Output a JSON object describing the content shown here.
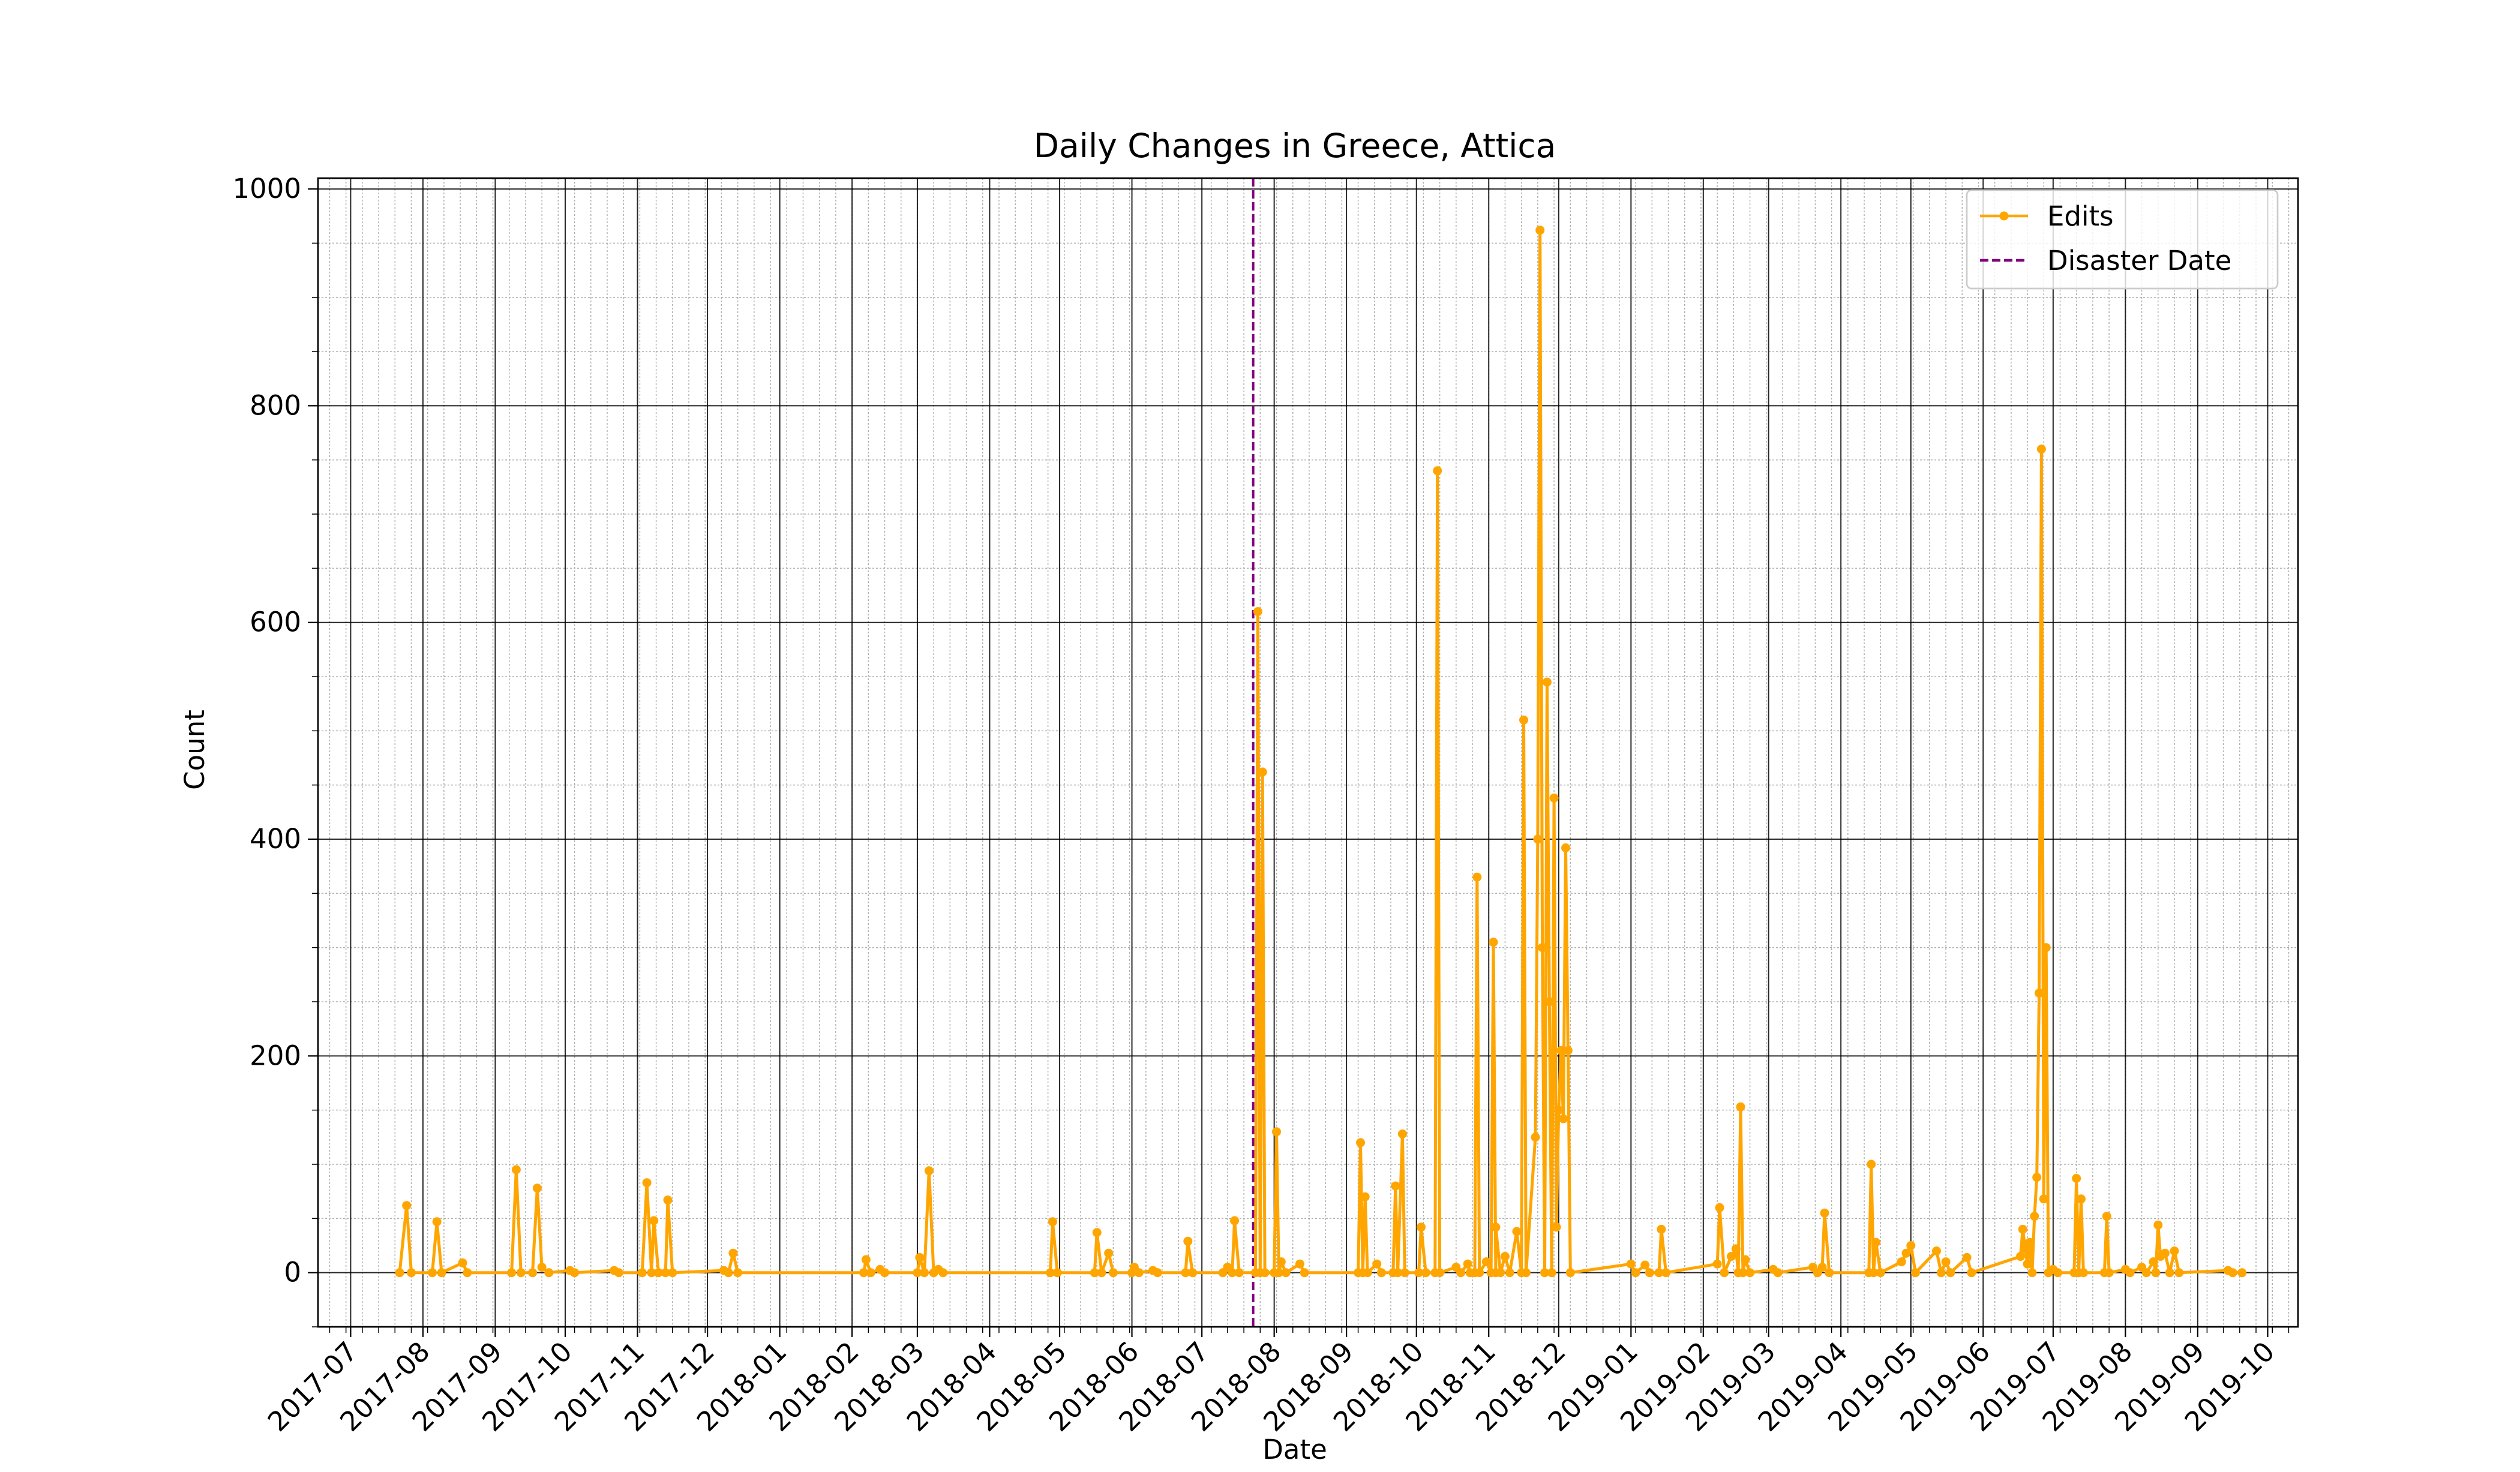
{
  "chart_data": {
    "type": "line",
    "title": "Daily Changes in Greece, Attica",
    "xlabel": "Date",
    "ylabel": "Count",
    "x_tick_labels": [
      "2017-07",
      "2017-08",
      "2017-09",
      "2017-10",
      "2017-11",
      "2017-12",
      "2018-01",
      "2018-02",
      "2018-03",
      "2018-04",
      "2018-05",
      "2018-06",
      "2018-07",
      "2018-08",
      "2018-09",
      "2018-10",
      "2018-11",
      "2018-12",
      "2019-01",
      "2019-02",
      "2019-03",
      "2019-04",
      "2019-05",
      "2019-06",
      "2019-07",
      "2019-08",
      "2019-09",
      "2019-10"
    ],
    "x_tick_dates": [
      "2017-07-01",
      "2017-08-01",
      "2017-09-01",
      "2017-10-01",
      "2017-11-01",
      "2017-12-01",
      "2018-01-01",
      "2018-02-01",
      "2018-03-01",
      "2018-04-01",
      "2018-05-01",
      "2018-06-01",
      "2018-07-01",
      "2018-08-01",
      "2018-09-01",
      "2018-10-01",
      "2018-11-01",
      "2018-12-01",
      "2019-01-01",
      "2019-02-01",
      "2019-03-01",
      "2019-04-01",
      "2019-05-01",
      "2019-06-01",
      "2019-07-01",
      "2019-08-01",
      "2019-09-01",
      "2019-10-01"
    ],
    "y_ticks": [
      0,
      200,
      400,
      600,
      800,
      1000
    ],
    "xlim": [
      "2017-06-17",
      "2019-10-14"
    ],
    "ylim": [
      -50,
      1010
    ],
    "grid": {
      "major": true,
      "minor": true
    },
    "legend_position": "top-right",
    "series": [
      {
        "name": "Edits",
        "color": "#FFA500",
        "marker": "circle",
        "data": [
          [
            "2017-07-22",
            0
          ],
          [
            "2017-07-25",
            62
          ],
          [
            "2017-07-27",
            0
          ],
          [
            "2017-08-05",
            0
          ],
          [
            "2017-08-07",
            47
          ],
          [
            "2017-08-09",
            0
          ],
          [
            "2017-08-18",
            9
          ],
          [
            "2017-08-20",
            0
          ],
          [
            "2017-09-08",
            0
          ],
          [
            "2017-09-10",
            95
          ],
          [
            "2017-09-12",
            0
          ],
          [
            "2017-09-17",
            0
          ],
          [
            "2017-09-19",
            78
          ],
          [
            "2017-09-21",
            5
          ],
          [
            "2017-09-24",
            0
          ],
          [
            "2017-10-03",
            2
          ],
          [
            "2017-10-05",
            0
          ],
          [
            "2017-10-22",
            2
          ],
          [
            "2017-10-24",
            0
          ],
          [
            "2017-11-03",
            0
          ],
          [
            "2017-11-05",
            83
          ],
          [
            "2017-11-07",
            0
          ],
          [
            "2017-11-08",
            48
          ],
          [
            "2017-11-10",
            0
          ],
          [
            "2017-11-13",
            0
          ],
          [
            "2017-11-14",
            67
          ],
          [
            "2017-11-16",
            0
          ],
          [
            "2017-12-08",
            2
          ],
          [
            "2017-12-10",
            0
          ],
          [
            "2017-12-12",
            18
          ],
          [
            "2017-12-14",
            0
          ],
          [
            "2018-02-06",
            0
          ],
          [
            "2018-02-07",
            12
          ],
          [
            "2018-02-09",
            0
          ],
          [
            "2018-02-13",
            3
          ],
          [
            "2018-02-15",
            0
          ],
          [
            "2018-02-29",
            0
          ],
          [
            "2018-03-02",
            14
          ],
          [
            "2018-03-04",
            0
          ],
          [
            "2018-03-06",
            94
          ],
          [
            "2018-03-08",
            0
          ],
          [
            "2018-03-10",
            3
          ],
          [
            "2018-03-12",
            0
          ],
          [
            "2018-04-27",
            0
          ],
          [
            "2018-04-28",
            47
          ],
          [
            "2018-04-30",
            0
          ],
          [
            "2018-05-16",
            0
          ],
          [
            "2018-05-17",
            37
          ],
          [
            "2018-05-19",
            0
          ],
          [
            "2018-05-22",
            18
          ],
          [
            "2018-05-24",
            0
          ],
          [
            "2018-06-01",
            0
          ],
          [
            "2018-06-02",
            5
          ],
          [
            "2018-06-04",
            0
          ],
          [
            "2018-06-10",
            2
          ],
          [
            "2018-06-12",
            0
          ],
          [
            "2018-06-24",
            0
          ],
          [
            "2018-06-25",
            29
          ],
          [
            "2018-06-27",
            0
          ],
          [
            "2018-07-10",
            0
          ],
          [
            "2018-07-12",
            5
          ],
          [
            "2018-07-14",
            0
          ],
          [
            "2018-07-15",
            48
          ],
          [
            "2018-07-17",
            0
          ],
          [
            "2018-07-24",
            0
          ],
          [
            "2018-07-25",
            610
          ],
          [
            "2018-07-26",
            0
          ],
          [
            "2018-07-27",
            462
          ],
          [
            "2018-07-28",
            0
          ],
          [
            "2018-08-01",
            0
          ],
          [
            "2018-08-02",
            130
          ],
          [
            "2018-08-03",
            0
          ],
          [
            "2018-08-04",
            10
          ],
          [
            "2018-08-06",
            0
          ],
          [
            "2018-08-12",
            8
          ],
          [
            "2018-08-14",
            0
          ],
          [
            "2018-09-06",
            0
          ],
          [
            "2018-09-07",
            120
          ],
          [
            "2018-09-08",
            0
          ],
          [
            "2018-09-09",
            70
          ],
          [
            "2018-09-10",
            0
          ],
          [
            "2018-09-14",
            8
          ],
          [
            "2018-09-16",
            0
          ],
          [
            "2018-09-21",
            0
          ],
          [
            "2018-09-22",
            80
          ],
          [
            "2018-09-23",
            0
          ],
          [
            "2018-09-25",
            128
          ],
          [
            "2018-09-26",
            0
          ],
          [
            "2018-10-02",
            0
          ],
          [
            "2018-10-03",
            42
          ],
          [
            "2018-10-05",
            0
          ],
          [
            "2018-10-09",
            0
          ],
          [
            "2018-10-10",
            740
          ],
          [
            "2018-10-11",
            0
          ],
          [
            "2018-10-18",
            5
          ],
          [
            "2018-10-20",
            0
          ],
          [
            "2018-10-23",
            8
          ],
          [
            "2018-10-24",
            0
          ],
          [
            "2018-10-26",
            0
          ],
          [
            "2018-10-27",
            365
          ],
          [
            "2018-10-28",
            0
          ],
          [
            "2018-10-31",
            10
          ],
          [
            "2018-11-02",
            0
          ],
          [
            "2018-11-03",
            305
          ],
          [
            "2018-11-04",
            0
          ],
          [
            "2018-11-04",
            42
          ],
          [
            "2018-11-06",
            0
          ],
          [
            "2018-11-08",
            15
          ],
          [
            "2018-11-10",
            0
          ],
          [
            "2018-11-13",
            38
          ],
          [
            "2018-11-15",
            0
          ],
          [
            "2018-11-16",
            510
          ],
          [
            "2018-11-17",
            0
          ],
          [
            "2018-11-21",
            125
          ],
          [
            "2018-11-22",
            400
          ],
          [
            "2018-11-23",
            962
          ],
          [
            "2018-11-24",
            300
          ],
          [
            "2018-11-25",
            0
          ],
          [
            "2018-11-26",
            545
          ],
          [
            "2018-11-27",
            250
          ],
          [
            "2018-11-28",
            0
          ],
          [
            "2018-11-29",
            438
          ],
          [
            "2018-11-30",
            42
          ],
          [
            "2018-12-01",
            150
          ],
          [
            "2018-12-02",
            205
          ],
          [
            "2018-12-03",
            142
          ],
          [
            "2018-12-04",
            392
          ],
          [
            "2018-12-05",
            205
          ],
          [
            "2018-12-06",
            0
          ],
          [
            "2019-01-01",
            8
          ],
          [
            "2019-01-03",
            0
          ],
          [
            "2019-01-07",
            7
          ],
          [
            "2019-01-09",
            0
          ],
          [
            "2019-01-13",
            0
          ],
          [
            "2019-01-14",
            40
          ],
          [
            "2019-01-16",
            0
          ],
          [
            "2019-02-07",
            8
          ],
          [
            "2019-02-08",
            60
          ],
          [
            "2019-02-10",
            0
          ],
          [
            "2019-02-13",
            15
          ],
          [
            "2019-02-15",
            22
          ],
          [
            "2019-02-16",
            0
          ],
          [
            "2019-02-17",
            153
          ],
          [
            "2019-02-18",
            0
          ],
          [
            "2019-02-19",
            12
          ],
          [
            "2019-02-21",
            0
          ],
          [
            "2019-03-03",
            3
          ],
          [
            "2019-03-05",
            0
          ],
          [
            "2019-03-20",
            5
          ],
          [
            "2019-03-22",
            0
          ],
          [
            "2019-03-24",
            5
          ],
          [
            "2019-03-25",
            55
          ],
          [
            "2019-03-27",
            0
          ],
          [
            "2019-04-13",
            0
          ],
          [
            "2019-04-14",
            100
          ],
          [
            "2019-04-15",
            0
          ],
          [
            "2019-04-16",
            28
          ],
          [
            "2019-04-18",
            0
          ],
          [
            "2019-04-27",
            10
          ],
          [
            "2019-04-29",
            18
          ],
          [
            "2019-05-01",
            25
          ],
          [
            "2019-05-03",
            0
          ],
          [
            "2019-05-12",
            20
          ],
          [
            "2019-05-14",
            0
          ],
          [
            "2019-05-16",
            10
          ],
          [
            "2019-05-18",
            0
          ],
          [
            "2019-05-25",
            14
          ],
          [
            "2019-05-27",
            0
          ],
          [
            "2019-06-17",
            15
          ],
          [
            "2019-06-18",
            40
          ],
          [
            "2019-06-19",
            22
          ],
          [
            "2019-06-20",
            8
          ],
          [
            "2019-06-21",
            28
          ],
          [
            "2019-06-22",
            0
          ],
          [
            "2019-06-23",
            52
          ],
          [
            "2019-06-24",
            88
          ],
          [
            "2019-06-25",
            258
          ],
          [
            "2019-06-26",
            760
          ],
          [
            "2019-06-27",
            68
          ],
          [
            "2019-06-28",
            300
          ],
          [
            "2019-06-29",
            0
          ],
          [
            "2019-07-01",
            3
          ],
          [
            "2019-07-03",
            0
          ],
          [
            "2019-07-10",
            0
          ],
          [
            "2019-07-11",
            87
          ],
          [
            "2019-07-12",
            0
          ],
          [
            "2019-07-13",
            68
          ],
          [
            "2019-07-14",
            0
          ],
          [
            "2019-07-23",
            0
          ],
          [
            "2019-07-24",
            52
          ],
          [
            "2019-07-25",
            0
          ],
          [
            "2019-08-01",
            3
          ],
          [
            "2019-08-03",
            0
          ],
          [
            "2019-08-08",
            5
          ],
          [
            "2019-08-10",
            0
          ],
          [
            "2019-08-13",
            10
          ],
          [
            "2019-08-14",
            0
          ],
          [
            "2019-08-15",
            44
          ],
          [
            "2019-08-16",
            15
          ],
          [
            "2019-08-18",
            18
          ],
          [
            "2019-08-20",
            0
          ],
          [
            "2019-08-22",
            20
          ],
          [
            "2019-08-24",
            0
          ],
          [
            "2019-09-14",
            2
          ],
          [
            "2019-09-16",
            0
          ],
          [
            "2019-09-20",
            0
          ]
        ]
      },
      {
        "name": "Disaster Date",
        "color": "#800080",
        "line_style": "dashed",
        "x": "2018-07-23"
      }
    ]
  }
}
